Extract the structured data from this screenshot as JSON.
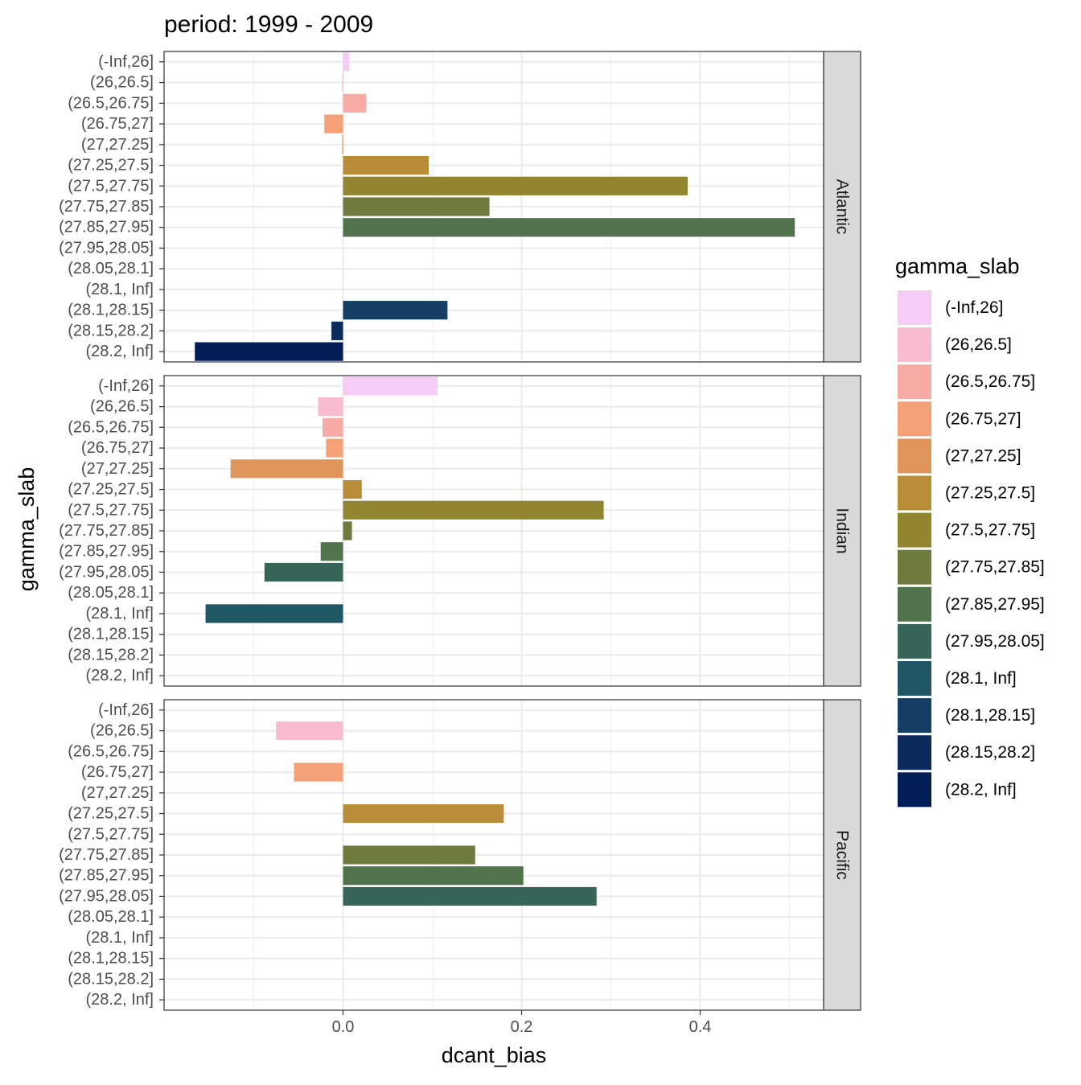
{
  "chart_data": {
    "type": "bar",
    "orientation": "horizontal",
    "title": "period: 1999 - 2009",
    "xlabel": "dcant_bias",
    "ylabel": "gamma_slab",
    "xlim": [
      -0.2,
      0.54
    ],
    "x_ticks": [
      "0.0",
      "0.2",
      "0.4"
    ],
    "grid": true,
    "legend_title": "gamma_slab",
    "legend_position": "right",
    "categories": [
      "(-Inf,26]",
      "(26,26.5]",
      "(26.5,26.75]",
      "(26.75,27]",
      "(27,27.25]",
      "(27.25,27.5]",
      "(27.5,27.75]",
      "(27.75,27.85]",
      "(27.85,27.95]",
      "(27.95,28.05]",
      "(28.05,28.1]",
      "(28.1, Inf]",
      "(28.1,28.15]",
      "(28.15,28.2]",
      "(28.2, Inf]"
    ],
    "legend_items": [
      "(-Inf,26]",
      "(26,26.5]",
      "(26.5,26.75]",
      "(26.75,27]",
      "(27,27.25]",
      "(27.25,27.5]",
      "(27.5,27.75]",
      "(27.75,27.85]",
      "(27.85,27.95]",
      "(27.95,28.05]",
      "(28.1, Inf]",
      "(28.1,28.15]",
      "(28.15,28.2]",
      "(28.2, Inf]"
    ],
    "colors": {
      "(-Inf,26]": "#F6CBF4",
      "(26,26.5]": "#F9BCCE",
      "(26.5,26.75]": "#F8AAA4",
      "(26.75,27]": "#F4A178",
      "(27,27.25]": "#E0965A",
      "(27.25,27.5]": "#B98C38",
      "(27.5,27.75]": "#918530",
      "(27.75,27.85]": "#6E7B3C",
      "(27.85,27.95]": "#51734C",
      "(27.95,28.05]": "#376659",
      "(28.05,28.1]": "#2A5C60",
      "(28.1, Inf]": "#1E5664",
      "(28.1,28.15]": "#143E63",
      "(28.15,28.2]": "#0C2A5C",
      "(28.2, Inf]": "#021C55"
    },
    "panels": [
      {
        "name": "Atlantic",
        "values": {
          "(-Inf,26]": 0.007,
          "(26,26.5]": -0.001,
          "(26.5,26.75]": 0.026,
          "(26.75,27]": -0.021,
          "(27,27.25]": -0.001,
          "(27.25,27.5]": 0.096,
          "(27.5,27.75]": 0.386,
          "(27.75,27.85]": 0.164,
          "(27.85,27.95]": 0.506,
          "(28.1,28.15]": 0.117,
          "(28.15,28.2]": -0.013,
          "(28.2, Inf]": -0.166
        }
      },
      {
        "name": "Indian",
        "values": {
          "(-Inf,26]": 0.106,
          "(26,26.5]": -0.028,
          "(26.5,26.75]": -0.023,
          "(26.75,27]": -0.019,
          "(27,27.25]": -0.126,
          "(27.25,27.5]": 0.021,
          "(27.5,27.75]": 0.292,
          "(27.75,27.85]": 0.01,
          "(27.85,27.95]": -0.025,
          "(27.95,28.05]": -0.088,
          "(28.1, Inf]": -0.154
        }
      },
      {
        "name": "Pacific",
        "values": {
          "(26,26.5]": -0.075,
          "(26.75,27]": -0.055,
          "(27.25,27.5]": 0.18,
          "(27.75,27.85]": 0.148,
          "(27.85,27.95]": 0.202,
          "(27.95,28.05]": 0.284
        }
      }
    ]
  }
}
